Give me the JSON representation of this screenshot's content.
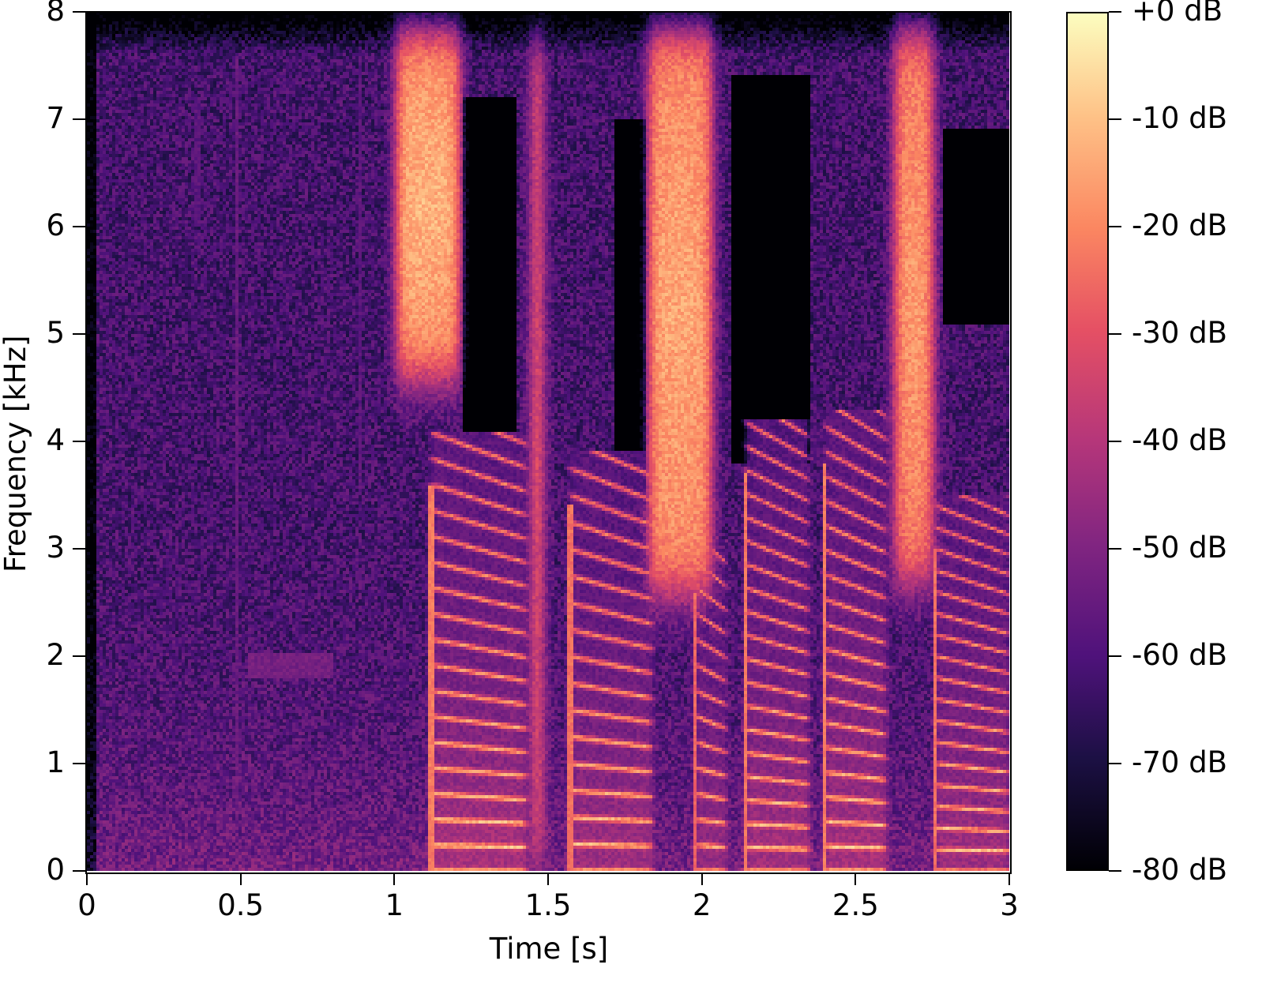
{
  "chart_data": {
    "type": "heatmap",
    "subtype": "spectrogram",
    "title": "",
    "xlabel": "Time [s]",
    "ylabel": "Frequency [kHz]",
    "xlim": [
      0,
      3
    ],
    "ylim": [
      0,
      8
    ],
    "xticks": [
      0,
      0.5,
      1,
      1.5,
      2,
      2.5,
      3
    ],
    "xtick_labels": [
      "0",
      "0.5",
      "1",
      "1.5",
      "2",
      "2.5",
      "3"
    ],
    "yticks": [
      0,
      1,
      2,
      3,
      4,
      5,
      6,
      7,
      8
    ],
    "ytick_labels": [
      "0",
      "1",
      "2",
      "3",
      "4",
      "5",
      "6",
      "7",
      "8"
    ],
    "grid": false,
    "colormap": "magma",
    "colorbar": {
      "position": "right",
      "range_db": [
        -80,
        0
      ],
      "ticks": [
        0,
        -10,
        -20,
        -30,
        -40,
        -50,
        -60,
        -70,
        -80
      ],
      "tick_labels": [
        "+0 dB",
        "-10 dB",
        "-20 dB",
        "-30 dB",
        "-40 dB",
        "-50 dB",
        "-60 dB",
        "-70 dB",
        "-80 dB"
      ]
    },
    "background_noise_db": -62,
    "events": [
      {
        "name": "fricative-1",
        "t_start": 1.0,
        "t_end": 1.22,
        "f_low_khz": 4.5,
        "f_high_khz": 7.9,
        "peak_db": -12
      },
      {
        "name": "plosive-burst",
        "t_start": 1.44,
        "t_end": 1.49,
        "f_low_khz": 0.0,
        "f_high_khz": 7.8,
        "peak_db": -22
      },
      {
        "name": "fricative-2",
        "t_start": 1.82,
        "t_end": 2.04,
        "f_low_khz": 2.5,
        "f_high_khz": 7.9,
        "peak_db": -14
      },
      {
        "name": "fricative-3",
        "t_start": 2.62,
        "t_end": 2.76,
        "f_low_khz": 2.6,
        "f_high_khz": 7.9,
        "peak_db": -16
      }
    ],
    "voiced_segments": [
      {
        "t_start": 1.12,
        "t_end": 1.43,
        "f0_khz": 0.24,
        "harmonics_up_to_khz": 3.6,
        "peak_db": -8
      },
      {
        "t_start": 1.57,
        "t_end": 1.84,
        "f0_khz": 0.25,
        "harmonics_up_to_khz": 3.4,
        "peak_db": -10
      },
      {
        "t_start": 1.98,
        "t_end": 2.08,
        "f0_khz": 0.24,
        "harmonics_up_to_khz": 2.6,
        "peak_db": -12
      },
      {
        "t_start": 2.14,
        "t_end": 2.35,
        "f0_khz": 0.22,
        "harmonics_up_to_khz": 3.7,
        "peak_db": -9
      },
      {
        "t_start": 2.4,
        "t_end": 2.6,
        "f0_khz": 0.23,
        "harmonics_up_to_khz": 3.8,
        "peak_db": -8
      },
      {
        "t_start": 2.76,
        "t_end": 3.0,
        "f0_khz": 0.2,
        "harmonics_up_to_khz": 3.0,
        "peak_db": -10
      }
    ],
    "silent_regions": [
      {
        "t_start": 1.22,
        "t_end": 1.4,
        "f_low_khz": 3.2,
        "f_high_khz": 7.2
      },
      {
        "t_start": 1.72,
        "t_end": 1.82,
        "f_low_khz": 3.4,
        "f_high_khz": 7.0
      },
      {
        "t_start": 2.1,
        "t_end": 2.35,
        "f_low_khz": 3.8,
        "f_high_khz": 7.4
      },
      {
        "t_start": 2.78,
        "t_end": 3.0,
        "f_low_khz": 5.1,
        "f_high_khz": 6.9
      }
    ],
    "weak_features": [
      {
        "name": "click",
        "t": 0.49,
        "f_low_khz": 0.4,
        "f_high_khz": 7.6,
        "db": -55
      },
      {
        "name": "tone-sweep",
        "t_start": 0.52,
        "t_end": 0.8,
        "f_khz": 1.9,
        "db": -52
      },
      {
        "name": "click",
        "t": 0.36,
        "f_low_khz": 6.0,
        "f_high_khz": 7.2,
        "db": -58
      },
      {
        "name": "click",
        "t": 0.89,
        "f_low_khz": 3.5,
        "f_high_khz": 7.6,
        "db": -58
      }
    ]
  }
}
